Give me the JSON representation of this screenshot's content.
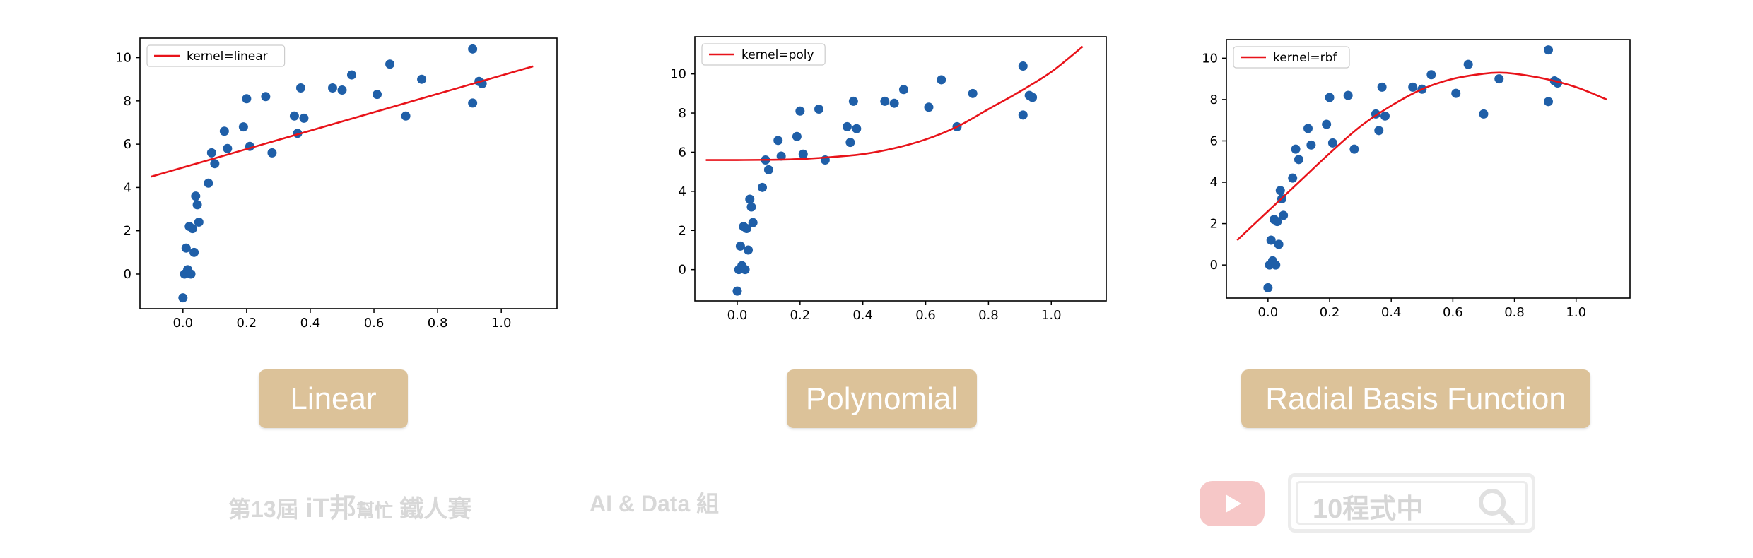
{
  "charts": [
    {
      "type": "scatter",
      "legend_label": "kernel=linear",
      "legend_position": "upper-left",
      "xlim": [
        -0.135,
        1.175
      ],
      "ylim": [
        -1.6,
        10.9
      ],
      "xticks": [
        0.0,
        0.2,
        0.4,
        0.6,
        0.8,
        1.0
      ],
      "yticks": [
        0,
        2,
        4,
        6,
        8,
        10
      ],
      "line_color": "#e8131a",
      "point_color": "#1f5fa8",
      "curve": {
        "kind": "linear",
        "x_range": [
          -0.1,
          1.1
        ],
        "y_at_minus_0_1": 4.5,
        "y_at_1_1": 9.6
      },
      "caption": "Linear"
    },
    {
      "type": "scatter",
      "legend_label": "kernel=poly",
      "legend_position": "upper-left",
      "xlim": [
        -0.135,
        1.175
      ],
      "ylim": [
        -1.6,
        11.9
      ],
      "xticks": [
        0.0,
        0.2,
        0.4,
        0.6,
        0.8,
        1.0
      ],
      "yticks": [
        0,
        2,
        4,
        6,
        8,
        10
      ],
      "line_color": "#e8131a",
      "point_color": "#1f5fa8",
      "curve": {
        "kind": "poly",
        "x_range": [
          -0.1,
          1.1
        ],
        "points": [
          [
            -0.1,
            5.6
          ],
          [
            0.0,
            5.6
          ],
          [
            0.1,
            5.61
          ],
          [
            0.2,
            5.65
          ],
          [
            0.3,
            5.75
          ],
          [
            0.4,
            5.9
          ],
          [
            0.5,
            6.2
          ],
          [
            0.6,
            6.65
          ],
          [
            0.7,
            7.3
          ],
          [
            0.8,
            8.2
          ],
          [
            0.9,
            9.1
          ],
          [
            1.0,
            10.1
          ],
          [
            1.1,
            11.4
          ]
        ]
      },
      "caption": "Polynomial"
    },
    {
      "type": "scatter",
      "legend_label": "kernel=rbf",
      "legend_position": "upper-left",
      "xlim": [
        -0.135,
        1.175
      ],
      "ylim": [
        -1.6,
        10.9
      ],
      "xticks": [
        0.0,
        0.2,
        0.4,
        0.6,
        0.8,
        1.0
      ],
      "yticks": [
        0,
        2,
        4,
        6,
        8,
        10
      ],
      "line_color": "#e8131a",
      "point_color": "#1f5fa8",
      "curve": {
        "kind": "rbf",
        "x_range": [
          -0.1,
          1.1
        ],
        "points": [
          [
            -0.1,
            1.2
          ],
          [
            0.0,
            2.6
          ],
          [
            0.1,
            4.0
          ],
          [
            0.2,
            5.4
          ],
          [
            0.3,
            6.7
          ],
          [
            0.4,
            7.7
          ],
          [
            0.5,
            8.5
          ],
          [
            0.6,
            9.0
          ],
          [
            0.7,
            9.25
          ],
          [
            0.75,
            9.3
          ],
          [
            0.8,
            9.25
          ],
          [
            0.9,
            9.0
          ],
          [
            1.0,
            8.6
          ],
          [
            1.1,
            8.0
          ]
        ]
      },
      "caption": "Radial Basis Function"
    }
  ],
  "chart_data": [
    {
      "type": "scatter",
      "legend": [
        "kernel=linear"
      ],
      "xlim": [
        -0.135,
        1.175
      ],
      "ylim": [
        -1.6,
        10.9
      ],
      "series": [
        {
          "kind": "points",
          "x": [
            0.0,
            0.005,
            0.01,
            0.015,
            0.02,
            0.025,
            0.03,
            0.035,
            0.04,
            0.045,
            0.05,
            0.08,
            0.09,
            0.1,
            0.13,
            0.14,
            0.19,
            0.2,
            0.21,
            0.26,
            0.28,
            0.35,
            0.36,
            0.37,
            0.38,
            0.47,
            0.5,
            0.53,
            0.61,
            0.65,
            0.7,
            0.75,
            0.91,
            0.91,
            0.93,
            0.94
          ],
          "y": [
            -1.1,
            0.0,
            1.2,
            0.2,
            2.2,
            0.0,
            2.1,
            1.0,
            3.6,
            3.2,
            2.4,
            4.2,
            5.6,
            5.1,
            6.6,
            5.8,
            6.8,
            8.1,
            5.9,
            8.2,
            5.6,
            7.3,
            6.5,
            8.6,
            7.2,
            8.6,
            8.5,
            9.2,
            8.3,
            9.7,
            7.3,
            9.0,
            10.4,
            7.9,
            8.9,
            8.8
          ]
        },
        {
          "kind": "line",
          "name": "kernel=linear"
        }
      ]
    },
    {
      "type": "scatter",
      "legend": [
        "kernel=poly"
      ],
      "xlim": [
        -0.135,
        1.175
      ],
      "ylim": [
        -1.6,
        11.9
      ],
      "series": [
        {
          "kind": "points",
          "same_as_chart": 0
        },
        {
          "kind": "line",
          "name": "kernel=poly"
        }
      ]
    },
    {
      "type": "scatter",
      "legend": [
        "kernel=rbf"
      ],
      "xlim": [
        -0.135,
        1.175
      ],
      "ylim": [
        -1.6,
        10.9
      ],
      "series": [
        {
          "kind": "points",
          "same_as_chart": 0
        },
        {
          "kind": "line",
          "name": "kernel=rbf"
        }
      ]
    }
  ],
  "points": {
    "x": [
      0.0,
      0.005,
      0.01,
      0.015,
      0.02,
      0.025,
      0.03,
      0.035,
      0.04,
      0.045,
      0.05,
      0.08,
      0.09,
      0.1,
      0.13,
      0.14,
      0.19,
      0.2,
      0.21,
      0.26,
      0.28,
      0.35,
      0.36,
      0.37,
      0.38,
      0.47,
      0.5,
      0.53,
      0.61,
      0.65,
      0.7,
      0.75,
      0.91,
      0.91,
      0.93,
      0.94
    ],
    "y": [
      -1.1,
      0.0,
      1.2,
      0.2,
      2.2,
      0.0,
      2.1,
      1.0,
      3.6,
      3.2,
      2.4,
      4.2,
      5.6,
      5.1,
      6.6,
      5.8,
      6.8,
      8.1,
      5.9,
      8.2,
      5.6,
      7.3,
      6.5,
      8.6,
      7.2,
      8.6,
      8.5,
      9.2,
      8.3,
      9.7,
      7.3,
      9.0,
      10.4,
      7.9,
      8.9,
      8.8
    ]
  },
  "captions": {
    "linear": "Linear",
    "poly": "Polynomial",
    "rbf": "Radial Basis Function"
  },
  "footer": {
    "event_prefix": "第13屆",
    "event_brand": "iT邦",
    "event_small": "幫忙",
    "event_suffix": "鐵人賽",
    "group": "AI & Data 組",
    "channel": "10程式中",
    "youtube_icon": "youtube-icon",
    "search_icon": "search-icon"
  }
}
